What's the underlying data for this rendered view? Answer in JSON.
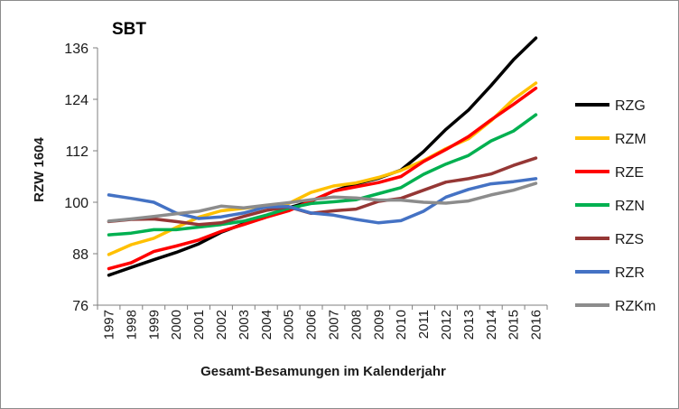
{
  "chart_data": {
    "type": "line",
    "title": "SBT",
    "xlabel": "Gesamt-Besamungen im Kalenderjahr",
    "ylabel": "RZW 1604",
    "ylim": [
      76,
      136
    ],
    "yticks": [
      76,
      88,
      100,
      112,
      124,
      136
    ],
    "grid": "none",
    "legend_position": "right",
    "categories": [
      "1997",
      "1998",
      "1999",
      "2000",
      "2001",
      "2002",
      "2003",
      "2004",
      "2005",
      "2006",
      "2007",
      "2008",
      "2009",
      "2010",
      "2011",
      "2012",
      "2013",
      "2014",
      "2015",
      "2016"
    ],
    "series": [
      {
        "name": "RZG",
        "color": "#000000",
        "values": [
          83.0,
          84.8,
          86.6,
          88.3,
          90.3,
          93.0,
          95.0,
          96.8,
          98.7,
          100.2,
          102.6,
          104.3,
          105.6,
          107.5,
          111.8,
          117.0,
          121.5,
          127.2,
          133.2,
          138.3
        ]
      },
      {
        "name": "RZM",
        "color": "#ffc000",
        "values": [
          87.8,
          90.1,
          91.6,
          94.1,
          96.5,
          98.0,
          98.6,
          99.2,
          99.7,
          102.3,
          103.8,
          104.5,
          105.8,
          107.4,
          109.7,
          112.5,
          114.8,
          119.0,
          124.0,
          127.8
        ]
      },
      {
        "name": "RZE",
        "color": "#ff0000",
        "values": [
          84.5,
          85.9,
          88.5,
          89.8,
          91.2,
          93.2,
          94.8,
          96.5,
          98.0,
          100.3,
          102.6,
          103.6,
          104.6,
          106.0,
          109.5,
          112.3,
          115.3,
          119.2,
          122.8,
          126.6
        ]
      },
      {
        "name": "RZN",
        "color": "#00b050",
        "values": [
          92.4,
          92.8,
          93.6,
          93.6,
          94.2,
          94.8,
          95.6,
          97.0,
          98.6,
          99.7,
          100.1,
          100.6,
          102.0,
          103.4,
          106.5,
          108.9,
          110.9,
          114.3,
          116.6,
          120.4
        ]
      },
      {
        "name": "RZS",
        "color": "#953735",
        "values": [
          95.5,
          96.0,
          96.1,
          95.5,
          94.8,
          95.2,
          96.7,
          98.1,
          98.9,
          97.4,
          98.0,
          98.4,
          100.2,
          100.9,
          102.8,
          104.7,
          105.5,
          106.6,
          108.6,
          110.3
        ]
      },
      {
        "name": "RZR",
        "color": "#4472c4",
        "values": [
          101.7,
          100.9,
          100.0,
          97.5,
          96.2,
          96.6,
          97.5,
          98.9,
          99.0,
          97.5,
          97.0,
          96.0,
          95.2,
          95.7,
          97.9,
          101.2,
          103.0,
          104.3,
          104.8,
          105.5
        ]
      },
      {
        "name": "RZKm",
        "color": "#8c8c8c",
        "values": [
          95.6,
          96.1,
          96.7,
          97.3,
          97.9,
          99.1,
          98.7,
          99.3,
          99.9,
          100.6,
          101.2,
          101.0,
          100.5,
          100.5,
          100.0,
          99.8,
          100.3,
          101.7,
          102.8,
          104.4
        ]
      }
    ]
  }
}
